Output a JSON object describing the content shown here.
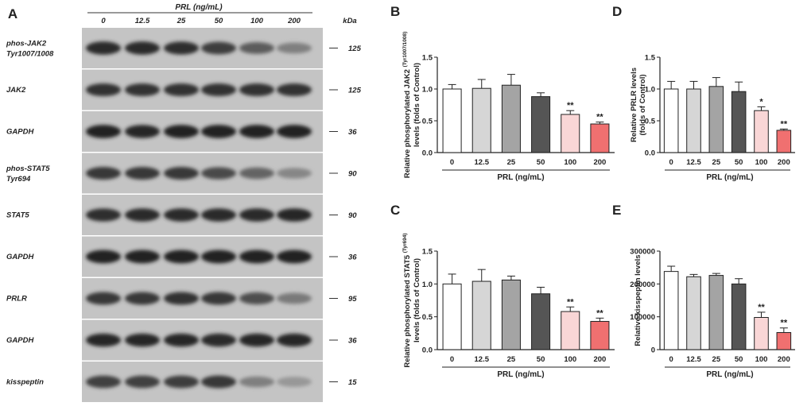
{
  "blot": {
    "panel_letter": "A",
    "header_label": "PRL (ng/mL)",
    "lanes": [
      "0",
      "12.5",
      "25",
      "50",
      "100",
      "200"
    ],
    "kda_label": "kDa",
    "rows": [
      {
        "label": [
          "phos-JAK2",
          "Tyr1007/1008"
        ],
        "kda": "125",
        "intensity": [
          0.9,
          0.9,
          0.88,
          0.8,
          0.62,
          0.42
        ]
      },
      {
        "label": [
          "JAK2"
        ],
        "kda": "125",
        "intensity": [
          0.85,
          0.85,
          0.85,
          0.85,
          0.85,
          0.85
        ]
      },
      {
        "label": [
          "GAPDH"
        ],
        "kda": "36",
        "intensity": [
          0.95,
          0.92,
          0.95,
          0.95,
          0.95,
          0.95
        ]
      },
      {
        "label": [
          "phos-STAT5",
          "Tyr694"
        ],
        "kda": "90",
        "intensity": [
          0.82,
          0.82,
          0.82,
          0.72,
          0.58,
          0.38
        ]
      },
      {
        "label": [
          "STAT5"
        ],
        "kda": "90",
        "intensity": [
          0.88,
          0.9,
          0.9,
          0.9,
          0.9,
          0.92
        ]
      },
      {
        "label": [
          "GAPDH"
        ],
        "kda": "36",
        "intensity": [
          0.95,
          0.95,
          0.95,
          0.95,
          0.95,
          0.95
        ]
      },
      {
        "label": [
          "PRLR"
        ],
        "kda": "95",
        "intensity": [
          0.82,
          0.82,
          0.85,
          0.82,
          0.7,
          0.45
        ]
      },
      {
        "label": [
          "GAPDH"
        ],
        "kda": "36",
        "intensity": [
          0.92,
          0.92,
          0.92,
          0.9,
          0.92,
          0.92
        ]
      },
      {
        "label": [
          "kisspeptin"
        ],
        "kda": "15",
        "intensity": [
          0.78,
          0.78,
          0.8,
          0.82,
          0.42,
          0.28
        ]
      }
    ]
  },
  "colors": {
    "bars": [
      "#ffffff",
      "#d6d6d6",
      "#a4a4a4",
      "#555555",
      "#f9d6d6",
      "#f07070"
    ],
    "axis": "#222222"
  },
  "chart_data": [
    {
      "panel": "B",
      "type": "bar",
      "categories": [
        "0",
        "12.5",
        "25",
        "50",
        "100",
        "200"
      ],
      "values": [
        1.0,
        1.01,
        1.06,
        0.88,
        0.6,
        0.45
      ],
      "errors": [
        0.07,
        0.14,
        0.17,
        0.06,
        0.06,
        0.03
      ],
      "significance": [
        "",
        "",
        "",
        "",
        "**",
        "**"
      ],
      "xlabel": "PRL (ng/mL)",
      "ylabel_main": "Relative phosphorylated JAK2",
      "ylabel_sup": "(Tyr1007/1008)",
      "ylabel_line2": "levels (folds of Control)",
      "ylim": [
        0,
        1.5
      ],
      "yticks": [
        "0.0",
        "0.5",
        "1.0",
        "1.5"
      ]
    },
    {
      "panel": "C",
      "type": "bar",
      "categories": [
        "0",
        "12.5",
        "25",
        "50",
        "100",
        "200"
      ],
      "values": [
        1.0,
        1.04,
        1.06,
        0.85,
        0.58,
        0.43
      ],
      "errors": [
        0.15,
        0.18,
        0.06,
        0.1,
        0.07,
        0.05
      ],
      "significance": [
        "",
        "",
        "",
        "",
        "**",
        "**"
      ],
      "xlabel": "PRL (ng/mL)",
      "ylabel_main": "Relative phosphorylated STAT5",
      "ylabel_sup": "(Tyr694)",
      "ylabel_line2": "levels (folds of Control)",
      "ylim": [
        0,
        1.5
      ],
      "yticks": [
        "0.0",
        "0.5",
        "1.0",
        "1.5"
      ]
    },
    {
      "panel": "D",
      "type": "bar",
      "categories": [
        "0",
        "12.5",
        "25",
        "50",
        "100",
        "200"
      ],
      "values": [
        1.0,
        1.0,
        1.04,
        0.96,
        0.66,
        0.35
      ],
      "errors": [
        0.12,
        0.12,
        0.14,
        0.15,
        0.06,
        0.02
      ],
      "significance": [
        "",
        "",
        "",
        "",
        "*",
        "**"
      ],
      "xlabel": "PRL (ng/mL)",
      "ylabel_main": "Relative PRLR levels",
      "ylabel_sup": "",
      "ylabel_line2": "(folds of Control)",
      "ylim": [
        0,
        1.5
      ],
      "yticks": [
        "0.0",
        "0.5",
        "1.0",
        "1.5"
      ]
    },
    {
      "panel": "E",
      "type": "bar",
      "categories": [
        "0",
        "12.5",
        "25",
        "50",
        "100",
        "200"
      ],
      "values": [
        238000,
        222000,
        226000,
        200000,
        98000,
        52000
      ],
      "errors": [
        16000,
        7000,
        6000,
        16000,
        16000,
        14000
      ],
      "significance": [
        "",
        "",
        "",
        "",
        "**",
        "**"
      ],
      "xlabel": "PRL (ng/mL)",
      "ylabel_main": "Relative kisspeptin levels",
      "ylabel_sup": "",
      "ylabel_line2": "",
      "ylim": [
        0,
        300000
      ],
      "yticks": [
        "0",
        "100000",
        "200000",
        "300000"
      ]
    }
  ]
}
